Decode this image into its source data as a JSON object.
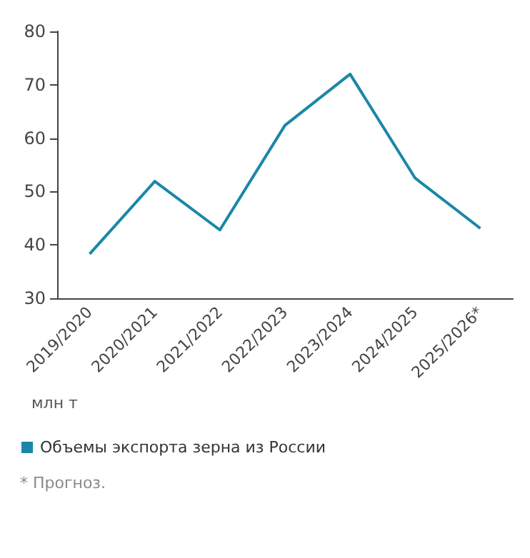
{
  "chart_data": {
    "type": "line",
    "ylabel": "млн т",
    "categories": [
      "2019/2020",
      "2020/2021",
      "2021/2022",
      "2022/2023",
      "2023/2024",
      "2024/2025",
      "2025/2026*"
    ],
    "series": [
      {
        "name": "Объемы экспорта зерна из России",
        "color": "#1a87a8",
        "values": [
          38.3,
          51.9,
          42.8,
          62.4,
          72.0,
          52.5,
          43.1
        ]
      }
    ],
    "ylim": [
      30,
      80
    ],
    "yticks": [
      30,
      40,
      50,
      60,
      70,
      80
    ],
    "grid": false,
    "legend": "bottom left",
    "marker": "none",
    "line_style": "solid",
    "annotations": [
      "* Прогноз."
    ]
  }
}
